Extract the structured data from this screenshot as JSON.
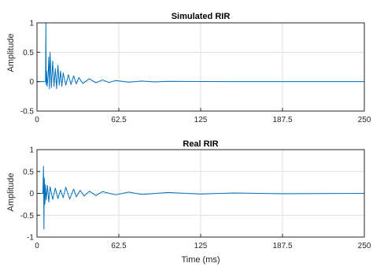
{
  "chart_data": [
    {
      "type": "line",
      "title": "Simulated RIR",
      "xlabel": "",
      "ylabel": "Amplitude",
      "xlim": [
        0,
        250
      ],
      "ylim": [
        -0.5,
        1
      ],
      "xticks": [
        0,
        62.5,
        125,
        187.5,
        250
      ],
      "xtick_labels": [
        "0",
        "62.5",
        "125",
        "187.5",
        "250"
      ],
      "yticks": [
        -0.5,
        0,
        0.5,
        1
      ],
      "ytick_labels": [
        "-0.5",
        "0",
        "0.5",
        "1"
      ],
      "grid": true,
      "color": "#0072bd",
      "series": [
        {
          "x": [
            0,
            6.5,
            6.8,
            7.0,
            7.3,
            7.8,
            8.5,
            9.0,
            9.5,
            10.0,
            11.0,
            12.0,
            13.0,
            14.0,
            15.0,
            16.0,
            17.0,
            18.0,
            19.0,
            20.0,
            22.0,
            24.0,
            26.0,
            28.0,
            30.0,
            32.0,
            35.0,
            40.0,
            45.0,
            50.0,
            55.0,
            60.0,
            70.0,
            80.0,
            90.0,
            100.0,
            125.0,
            150.0,
            187.5,
            250.0
          ],
          "y": [
            0,
            0,
            1.05,
            -0.05,
            0.18,
            -0.08,
            0.12,
            0.42,
            -0.12,
            0.5,
            -0.1,
            0.35,
            -0.08,
            0.22,
            -0.12,
            0.28,
            -0.06,
            0.18,
            -0.08,
            0.15,
            -0.06,
            0.12,
            -0.05,
            0.1,
            -0.04,
            0.07,
            -0.03,
            0.05,
            -0.02,
            0.03,
            -0.015,
            0.02,
            -0.01,
            0.01,
            -0.005,
            0.005,
            0.002,
            0.001,
            0.0,
            0.0
          ]
        }
      ]
    },
    {
      "type": "line",
      "title": "Real RIR",
      "xlabel": "Time (ms)",
      "ylabel": "Amplitude",
      "xlim": [
        0,
        250
      ],
      "ylim": [
        -1,
        1
      ],
      "xticks": [
        0,
        62.5,
        125,
        187.5,
        250
      ],
      "xtick_labels": [
        "0",
        "62.5",
        "125",
        "187.5",
        "250"
      ],
      "yticks": [
        -1,
        -0.5,
        0,
        0.5,
        1
      ],
      "ytick_labels": [
        "-1",
        "-0.5",
        "0",
        "0.5",
        "1"
      ],
      "grid": true,
      "color": "#0072bd",
      "series": [
        {
          "x": [
            0,
            4.5,
            5.0,
            5.3,
            5.6,
            6.0,
            6.5,
            7.0,
            8.0,
            9.0,
            10.0,
            12.0,
            14.0,
            16.0,
            18.0,
            20.0,
            22.0,
            25.0,
            28.0,
            30.0,
            33.0,
            36.0,
            40.0,
            45.0,
            50.0,
            60.0,
            70.0,
            80.0,
            100.0,
            125.0,
            150.0,
            187.5,
            250.0
          ],
          "y": [
            0,
            0,
            0.62,
            -0.82,
            0.35,
            -0.25,
            0.2,
            -0.15,
            0.18,
            -0.2,
            0.15,
            -0.14,
            0.12,
            -0.12,
            0.08,
            -0.1,
            0.14,
            -0.13,
            0.1,
            -0.08,
            0.07,
            -0.06,
            0.05,
            -0.05,
            0.04,
            -0.035,
            0.03,
            -0.025,
            0.02,
            -0.015,
            0.01,
            -0.008,
            0.0
          ]
        }
      ]
    }
  ]
}
